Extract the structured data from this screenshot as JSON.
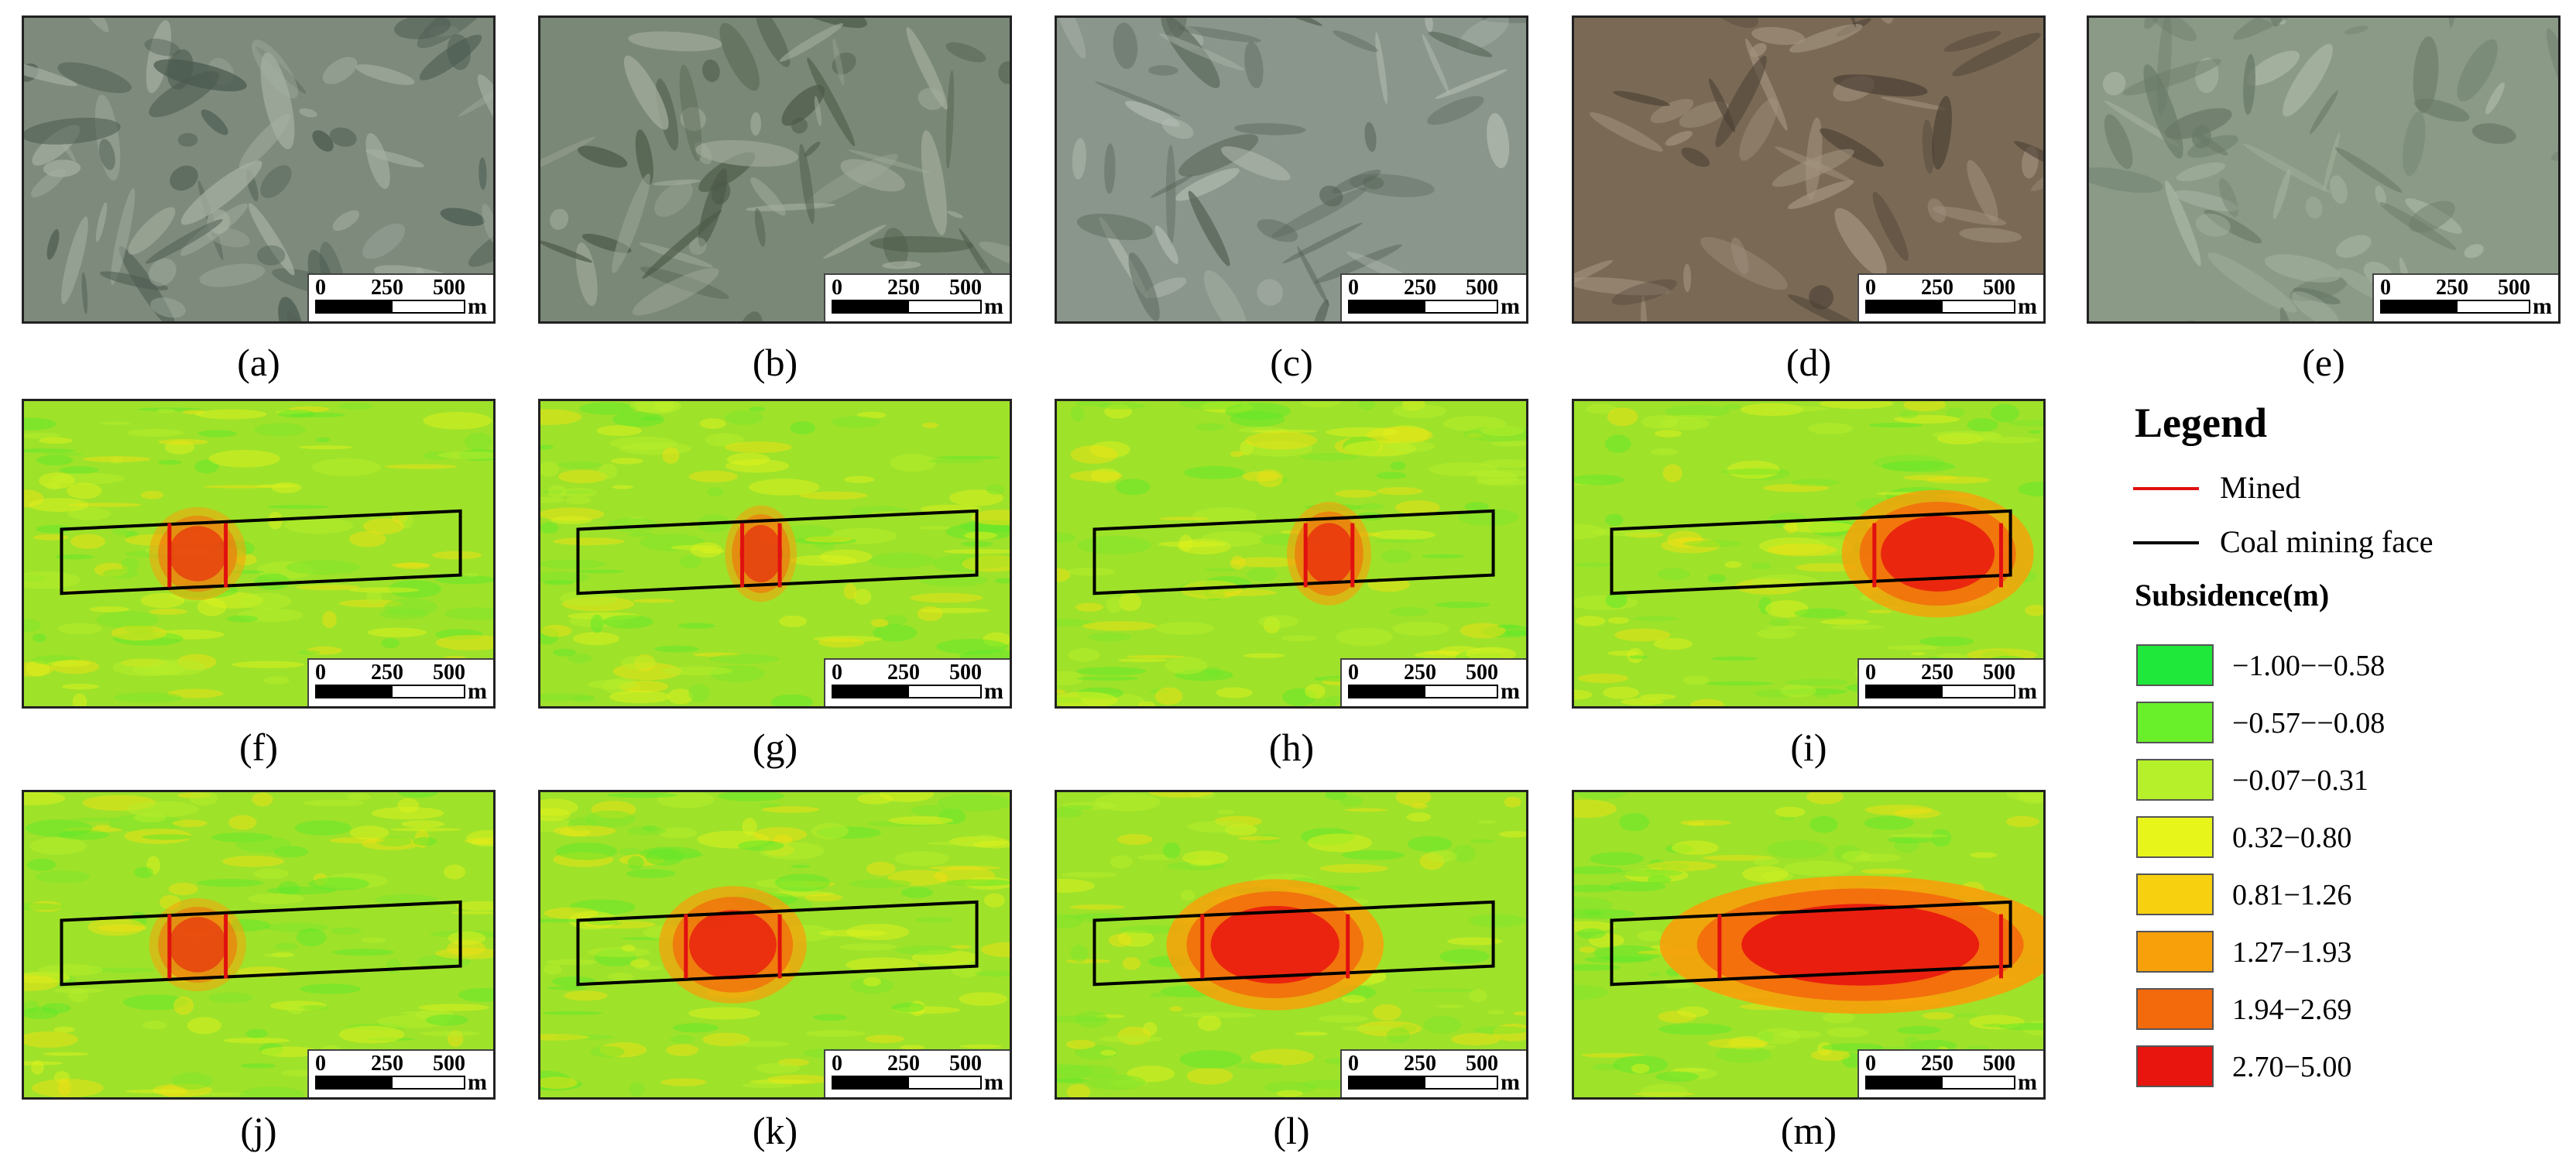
{
  "panels": [
    {
      "id": "a",
      "caption": "(a)",
      "kind": "photo"
    },
    {
      "id": "b",
      "caption": "(b)",
      "kind": "photo"
    },
    {
      "id": "c",
      "caption": "(c)",
      "kind": "photo"
    },
    {
      "id": "d",
      "caption": "(d)",
      "kind": "photo"
    },
    {
      "id": "e",
      "caption": "(e)",
      "kind": "photo"
    },
    {
      "id": "f",
      "caption": "(f)",
      "kind": "map",
      "intensity": 0.35
    },
    {
      "id": "g",
      "caption": "(g)",
      "kind": "map",
      "intensity": 0.4
    },
    {
      "id": "h",
      "caption": "(h)",
      "kind": "map",
      "intensity": 0.5
    },
    {
      "id": "i",
      "caption": "(i)",
      "kind": "map",
      "intensity": 0.85
    },
    {
      "id": "j",
      "caption": "(j)",
      "kind": "map",
      "intensity": 0.35
    },
    {
      "id": "k",
      "caption": "(k)",
      "kind": "map",
      "intensity": 0.7
    },
    {
      "id": "l",
      "caption": "(l)",
      "kind": "map",
      "intensity": 0.9
    },
    {
      "id": "m",
      "caption": "(m)",
      "kind": "map",
      "intensity": 1.0
    }
  ],
  "scale_bar": {
    "zero": "0",
    "mid": "250",
    "max": "500",
    "unit": "m"
  },
  "legend": {
    "title": "Legend",
    "mined_label": "Mined",
    "face_label": "Coal mining face",
    "subsidence_title": "Subsidence(m)",
    "classes": [
      {
        "label": "−1.00−−0.58",
        "color": "#1fe83a"
      },
      {
        "label": "−0.57−−0.08",
        "color": "#6af02a"
      },
      {
        "label": "−0.07−0.31",
        "color": "#b6f02a"
      },
      {
        "label": "0.32−0.80",
        "color": "#e8f51a"
      },
      {
        "label": "0.81−1.26",
        "color": "#f7d10f"
      },
      {
        "label": "1.27−1.93",
        "color": "#f7a00a"
      },
      {
        "label": "1.94−2.69",
        "color": "#f36a0c"
      },
      {
        "label": "2.70−5.00",
        "color": "#e8150f"
      }
    ]
  },
  "colors": {
    "mined_line": "#e01010",
    "face_line": "#000000"
  }
}
